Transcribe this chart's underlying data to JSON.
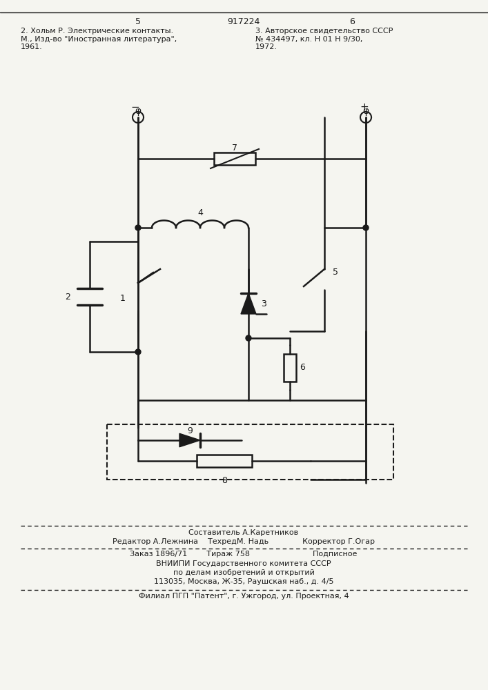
{
  "bg_color": "#f5f5f0",
  "page_number_left": "5",
  "page_number_center": "917224",
  "page_number_right": "6",
  "header_text_left": "2. Хольм Р. Электрические контакты.\nМ., Изд-во \"Иностранная литература\",\n1961.",
  "header_text_right": "3. Авторское свидетельство СССР\n№ 434497, кл. Н 01 Н 9/30,\n1972.",
  "footer_line1": "Составитель А.Каретников",
  "footer_line2": "Редактор А.Лежнина    ТехредМ. Надь              Корректор Г.Огар",
  "footer_line3": "Заказ 1896/71        Тираж 758                          Подписное",
  "footer_line4": "ВНИИПИ Государственного комитета СССР",
  "footer_line5": "по делам изобретений и открытий",
  "footer_line6": "113035, Москва, Ж-35, Раушская наб., д. 4/5",
  "footer_line7": "Филиал ПГП \"Патент\", г. Ужгород, ул. Проектная, 4",
  "line_color": "#1a1a1a",
  "text_color": "#1a1a1a"
}
